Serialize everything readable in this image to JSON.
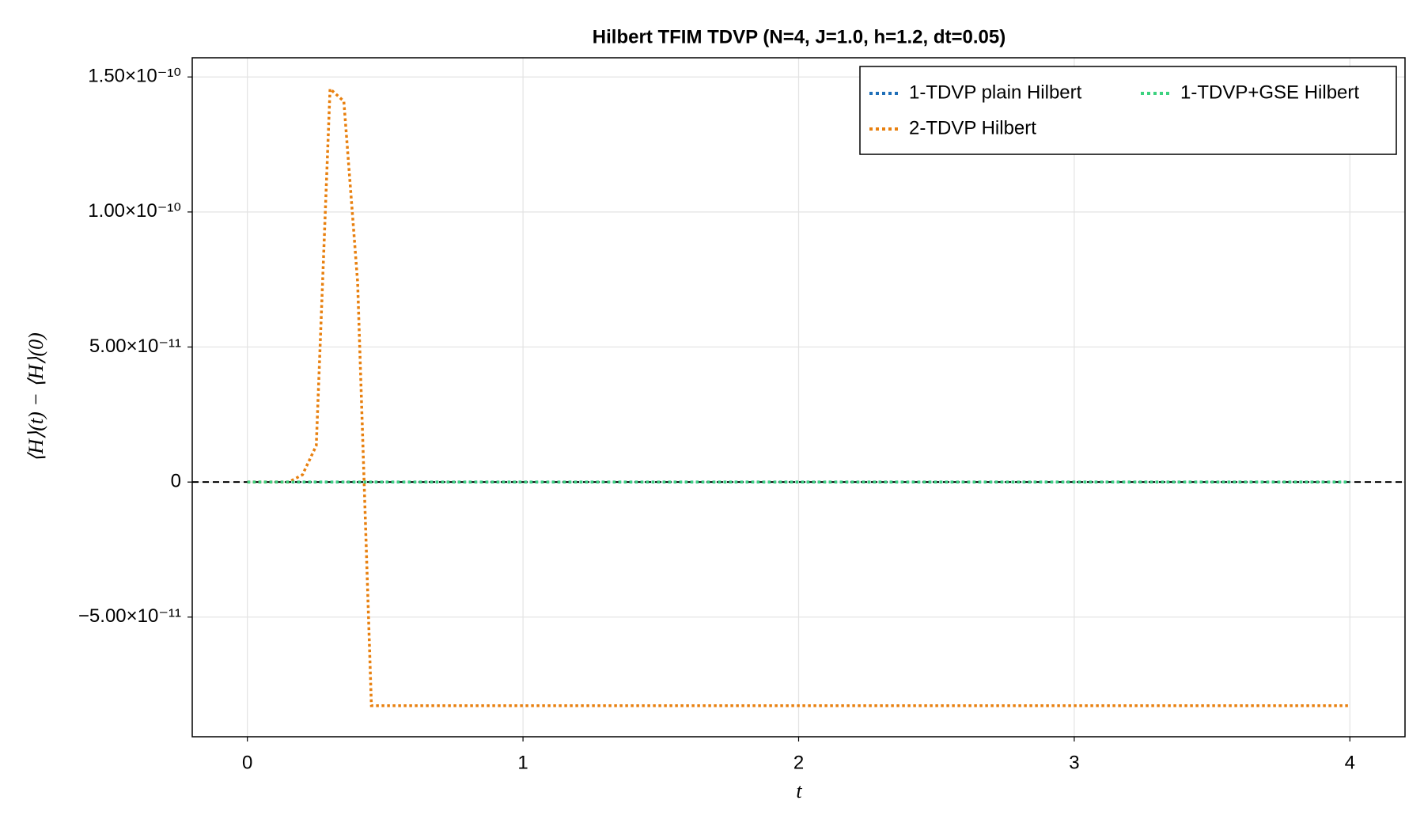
{
  "chart_data": {
    "type": "line",
    "title": "Hilbert TFIM TDVP (N=4, J=1.0, h=1.2, dt=0.05)",
    "x_label": "t",
    "y_label": "⟨H⟩(t) − ⟨H⟩(0)",
    "x": [
      0,
      0.05,
      0.1,
      0.15,
      0.2,
      0.25,
      0.3,
      0.35,
      0.4,
      0.45,
      0.5,
      0.55,
      0.6,
      0.65,
      0.7,
      0.75,
      0.8,
      0.85,
      0.9,
      0.95,
      1,
      1.05,
      1.1,
      1.15,
      1.2,
      1.25,
      1.3,
      1.35,
      1.4,
      1.45,
      1.5,
      1.55,
      1.6,
      1.65,
      1.7,
      1.75,
      1.8,
      1.85,
      1.9,
      1.95,
      2,
      2.05,
      2.1,
      2.15,
      2.2,
      2.25,
      2.3,
      2.35,
      2.4,
      2.45,
      2.5,
      2.55,
      2.6,
      2.65,
      2.7,
      2.75,
      2.8,
      2.85,
      2.9,
      2.95,
      3,
      3.05,
      3.1,
      3.15,
      3.2,
      3.25,
      3.3,
      3.35,
      3.4,
      3.45,
      3.5,
      3.55,
      3.6,
      3.65,
      3.7,
      3.75,
      3.8,
      3.85,
      3.9,
      3.95,
      4
    ],
    "series": [
      {
        "name": "1-TDVP plain Hilbert",
        "color": "#1f6fb8",
        "values": [
          0,
          0,
          0,
          0,
          0,
          0,
          0,
          0,
          0,
          0,
          0,
          0,
          0,
          0,
          0,
          0,
          0,
          0,
          0,
          0,
          0,
          0,
          0,
          0,
          0,
          0,
          0,
          0,
          0,
          0,
          0,
          0,
          0,
          0,
          0,
          0,
          0,
          0,
          0,
          0,
          0,
          0,
          0,
          0,
          0,
          0,
          0,
          0,
          0,
          0,
          0,
          0,
          0,
          0,
          0,
          0,
          0,
          0,
          0,
          0,
          0,
          0,
          0,
          0,
          0,
          0,
          0,
          0,
          0,
          0,
          0,
          0,
          0,
          0,
          0,
          0,
          0,
          0,
          0,
          0,
          0
        ]
      },
      {
        "name": "2-TDVP Hilbert",
        "color": "#e8800f",
        "values": [
          0,
          0,
          0,
          0,
          2.7e-12,
          1.35e-11,
          1.456e-10,
          1.41e-10,
          7.4e-11,
          -8.28e-11,
          -8.28e-11,
          -8.28e-11,
          -8.28e-11,
          -8.28e-11,
          -8.28e-11,
          -8.28e-11,
          -8.28e-11,
          -8.28e-11,
          -8.28e-11,
          -8.28e-11,
          -8.28e-11,
          -8.28e-11,
          -8.28e-11,
          -8.28e-11,
          -8.28e-11,
          -8.28e-11,
          -8.28e-11,
          -8.28e-11,
          -8.28e-11,
          -8.28e-11,
          -8.28e-11,
          -8.28e-11,
          -8.28e-11,
          -8.28e-11,
          -8.28e-11,
          -8.28e-11,
          -8.28e-11,
          -8.28e-11,
          -8.28e-11,
          -8.28e-11,
          -8.28e-11,
          -8.28e-11,
          -8.28e-11,
          -8.28e-11,
          -8.28e-11,
          -8.28e-11,
          -8.28e-11,
          -8.28e-11,
          -8.28e-11,
          -8.28e-11,
          -8.28e-11,
          -8.28e-11,
          -8.28e-11,
          -8.28e-11,
          -8.28e-11,
          -8.28e-11,
          -8.28e-11,
          -8.28e-11,
          -8.28e-11,
          -8.28e-11,
          -8.28e-11,
          -8.28e-11,
          -8.28e-11,
          -8.28e-11,
          -8.28e-11,
          -8.28e-11,
          -8.28e-11,
          -8.28e-11,
          -8.28e-11,
          -8.28e-11,
          -8.28e-11,
          -8.28e-11,
          -8.28e-11,
          -8.28e-11,
          -8.28e-11,
          -8.28e-11,
          -8.28e-11,
          -8.28e-11,
          -8.28e-11,
          -8.28e-11,
          -8.28e-11
        ]
      },
      {
        "name": "1-TDVP+GSE Hilbert",
        "color": "#3cd27f",
        "values": [
          0,
          0,
          0,
          0,
          0,
          0,
          0,
          0,
          0,
          0,
          0,
          0,
          0,
          0,
          0,
          0,
          0,
          0,
          0,
          0,
          0,
          0,
          0,
          0,
          0,
          0,
          0,
          0,
          0,
          0,
          0,
          0,
          0,
          0,
          0,
          0,
          0,
          0,
          0,
          0,
          0,
          0,
          0,
          0,
          0,
          0,
          0,
          0,
          0,
          0,
          0,
          0,
          0,
          0,
          0,
          0,
          0,
          0,
          0,
          0,
          0,
          0,
          0,
          0,
          0,
          0,
          0,
          0,
          0,
          0,
          0,
          0,
          0,
          0,
          0,
          0,
          0,
          0,
          0,
          0,
          0
        ]
      }
    ],
    "hline": 0,
    "xlim": [
      -0.2,
      4.2
    ],
    "ylim": [
      -9.43e-11,
      1.571e-10
    ],
    "xticks": [
      0,
      1,
      2,
      3,
      4
    ],
    "yticks": [
      {
        "value": -5e-11,
        "label": "−5.00×10⁻¹¹"
      },
      0,
      {
        "value": 5e-11,
        "label": "5.00×10⁻¹¹"
      },
      {
        "value": 1e-10,
        "label": "1.00×10⁻¹⁰"
      },
      {
        "value": 1.5e-10,
        "label": "1.50×10⁻¹⁰"
      }
    ],
    "grid": true,
    "legend": "upper right"
  }
}
